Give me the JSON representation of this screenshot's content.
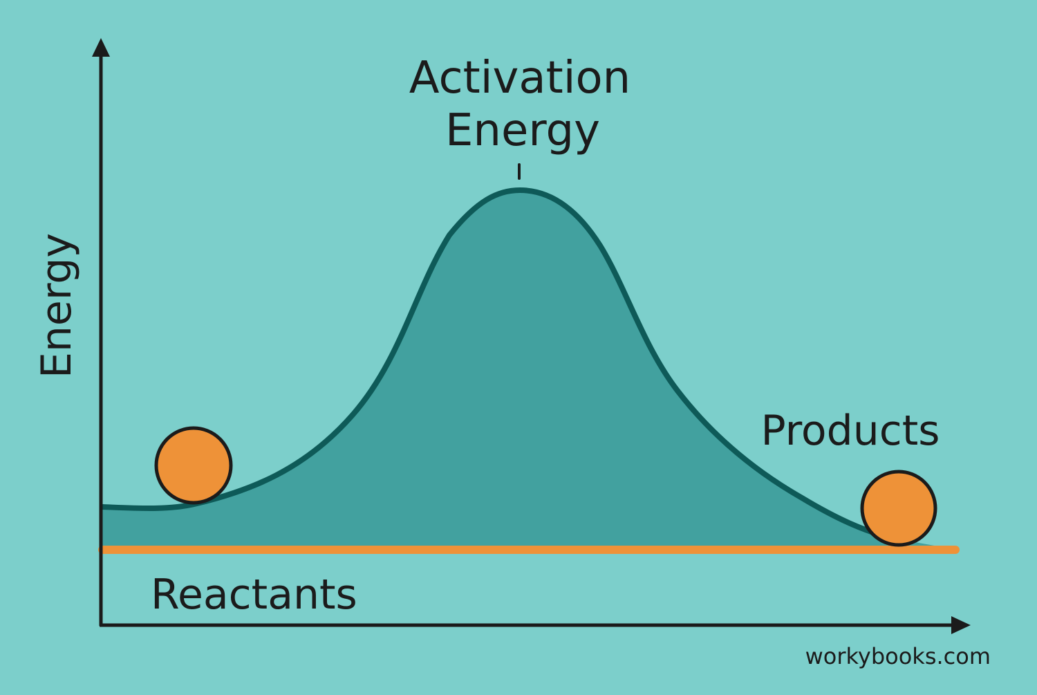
{
  "diagram": {
    "title_line1": "Activation",
    "title_line2": "Energy",
    "y_axis_label": "Energy",
    "reactants_label": "Reactants",
    "products_label": "Products",
    "watermark": "workybooks.com"
  },
  "colors": {
    "background": "#7ccfcb",
    "hill_fill": "#42a19f",
    "curve_stroke": "#0e5a58",
    "axis": "#1b1b1b",
    "ball_fill": "#ee9238",
    "ball_stroke": "#1b1b1b",
    "baseline": "#ee9238"
  }
}
